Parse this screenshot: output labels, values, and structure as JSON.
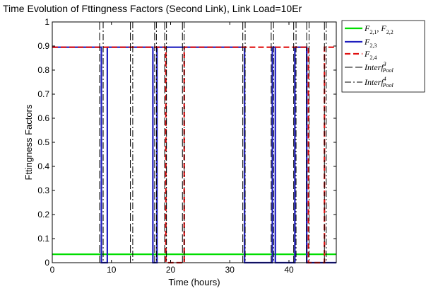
{
  "chart_data": {
    "type": "line",
    "title": "Time Evolution of Fttingness Factors (Second Link), Link Load=10Er",
    "xlabel": "Time (hours)",
    "ylabel": "Fttingness Factors",
    "xlim": [
      0,
      48
    ],
    "ylim": [
      0,
      1
    ],
    "xticks": [
      "0",
      "10",
      "20",
      "30",
      "40"
    ],
    "yticks": [
      "0",
      "0.1",
      "0.2",
      "0.3",
      "0.4",
      "0.5",
      "0.6",
      "0.7",
      "0.8",
      "0.9",
      "1"
    ],
    "grid": false,
    "legend_position": "outside-top-right",
    "colors": {
      "green": "#00dd00",
      "blue": "#1f1fbf",
      "red": "#e01010",
      "black": "#000000"
    },
    "series": [
      {
        "name": "F_{2,1}, F_{2,2}",
        "legend": {
          "base": "F",
          "sub": "2,1",
          "sep": ", ",
          "base2": "F",
          "sub2": "2,2"
        },
        "color": "#00dd00",
        "dash": "solid",
        "x": [
          0,
          48
        ],
        "y": [
          0.035,
          0.035
        ]
      },
      {
        "name": "F_{2,3}",
        "legend": {
          "base": "F",
          "sub": "2,3"
        },
        "color": "#1f1fbf",
        "dash": "solid",
        "x": [
          0,
          8.3,
          8.3,
          9.3,
          9.3,
          17.0,
          17.0,
          17.7,
          17.7,
          32.5,
          32.5,
          37.2,
          37.2,
          37.7,
          37.7,
          41.0,
          41.0,
          43.0,
          43.0,
          48
        ],
        "y": [
          0.895,
          0.895,
          0,
          0,
          0.895,
          0.895,
          0,
          0,
          0.895,
          0.895,
          0,
          0,
          0.895,
          0.895,
          0,
          0,
          0.895,
          0.895,
          0,
          0
        ]
      },
      {
        "name": "F_{2,4}",
        "legend": {
          "base": "F",
          "sub": "2,4"
        },
        "color": "#e01010",
        "dash": "dashed",
        "x": [
          0,
          19.2,
          19.2,
          22.3,
          22.3,
          43.3,
          43.3,
          46.0,
          46.0,
          48
        ],
        "y": [
          0.895,
          0.895,
          0,
          0,
          0.895,
          0.895,
          0,
          0,
          0.895,
          0.895
        ]
      },
      {
        "name": "Interf^3_Pool",
        "legend": {
          "base": "Interf",
          "sup": "3",
          "sub": "Pool"
        },
        "color": "#000000",
        "dash": "longdash",
        "events": [
          8.0,
          13.2,
          17.3,
          19.0,
          22.0,
          32.2,
          37.0,
          40.8,
          43.0,
          46.0
        ]
      },
      {
        "name": "Interf^4_Pool",
        "legend": {
          "base": "Interf",
          "sup": "4",
          "sub": "Pool"
        },
        "color": "#000000",
        "dash": "dashdot",
        "events": [
          8.6,
          13.6,
          17.6,
          19.3,
          22.3,
          32.6,
          37.4,
          41.2,
          43.4,
          46.3
        ]
      }
    ]
  }
}
